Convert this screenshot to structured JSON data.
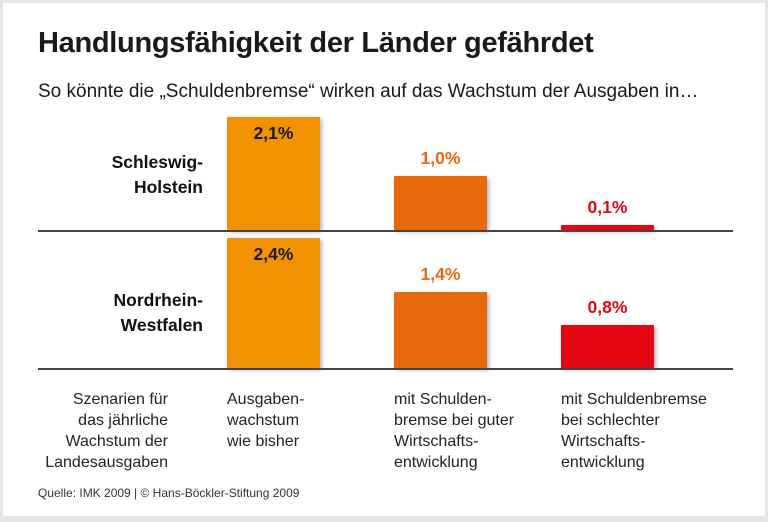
{
  "title": "Handlungsfähigkeit der Länder gefährdet",
  "subtitle": "So könnte die „Schuldenbremse“ wirken auf das Wachstum der Ausgaben in…",
  "source": "Quelle: IMK 2009 | © Hans-Böckler-Stiftung 2009",
  "chart_data": {
    "type": "bar",
    "row_header": "Szenarien für\ndas jährliche\nWachstum der\nLandesausgaben",
    "categories": [
      "Ausgaben-\nwachstum\nwie bisher",
      "mit Schulden-\nbremse bei guter\nWirtschafts-\nentwicklung",
      "mit Schuldenbremse\nbei schlechter\nWirtschafts-\nentwicklung"
    ],
    "colors": [
      "#f39200",
      "#e8690d",
      "#e30613"
    ],
    "label_colors": [
      "#1a1a1a",
      "#e8690d",
      "#e30613"
    ],
    "unit": "%",
    "groups": [
      {
        "name": "Schleswig-\nHolstein",
        "values": [
          2.1,
          1.0,
          0.1
        ],
        "labels": [
          "2,1%",
          "1,0%",
          "0,1%"
        ]
      },
      {
        "name": "Nordrhein-\nWestfalen",
        "values": [
          2.4,
          1.4,
          0.8
        ],
        "labels": [
          "2,4%",
          "1,4%",
          "0,8%"
        ]
      }
    ]
  }
}
